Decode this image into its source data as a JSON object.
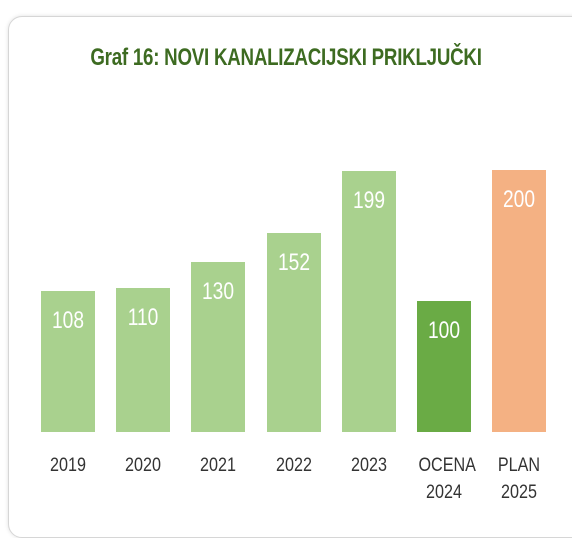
{
  "chart_data": {
    "type": "bar",
    "title": "Graf 16: NOVI KANALIZACIJSKI PRIKLJUČKI",
    "categories": [
      "2019",
      "2020",
      "2021",
      "2022",
      "2023",
      "OCENA 2024",
      "PLAN 2025"
    ],
    "values": [
      108,
      110,
      130,
      152,
      199,
      100,
      200
    ],
    "colors": [
      "#a9d18e",
      "#a9d18e",
      "#a9d18e",
      "#a9d18e",
      "#a9d18e",
      "#6aab45",
      "#f4b183"
    ]
  }
}
